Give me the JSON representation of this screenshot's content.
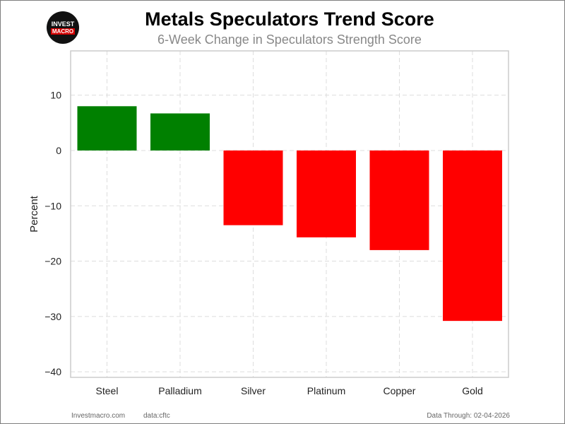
{
  "logo": {
    "line1": "INVEST",
    "line2": "MACRO"
  },
  "footer": {
    "site": "Investmacro.com",
    "source": "data:cftc",
    "data_through": "Data Through: 02-04-2026"
  },
  "colors": {
    "positive": "#008000",
    "negative": "#ff0000",
    "grid": "#dddddd",
    "axis": "#cccccc"
  },
  "chart_data": {
    "type": "bar",
    "title": "Metals Speculators Trend Score",
    "subtitle": "6-Week Change in Speculators Strength Score",
    "ylabel": "Percent",
    "xlabel": "",
    "categories": [
      "Steel",
      "Palladium",
      "Silver",
      "Platinum",
      "Copper",
      "Gold"
    ],
    "values": [
      8.0,
      6.7,
      -13.5,
      -15.7,
      -18.0,
      -30.8
    ],
    "ylim": [
      -41,
      18
    ],
    "yticks": [
      10,
      0,
      -10,
      -20,
      -30,
      -40
    ],
    "ytick_labels": [
      "10",
      "0",
      "−10",
      "−20",
      "−30",
      "−40"
    ],
    "grid": true,
    "legend": "none"
  }
}
